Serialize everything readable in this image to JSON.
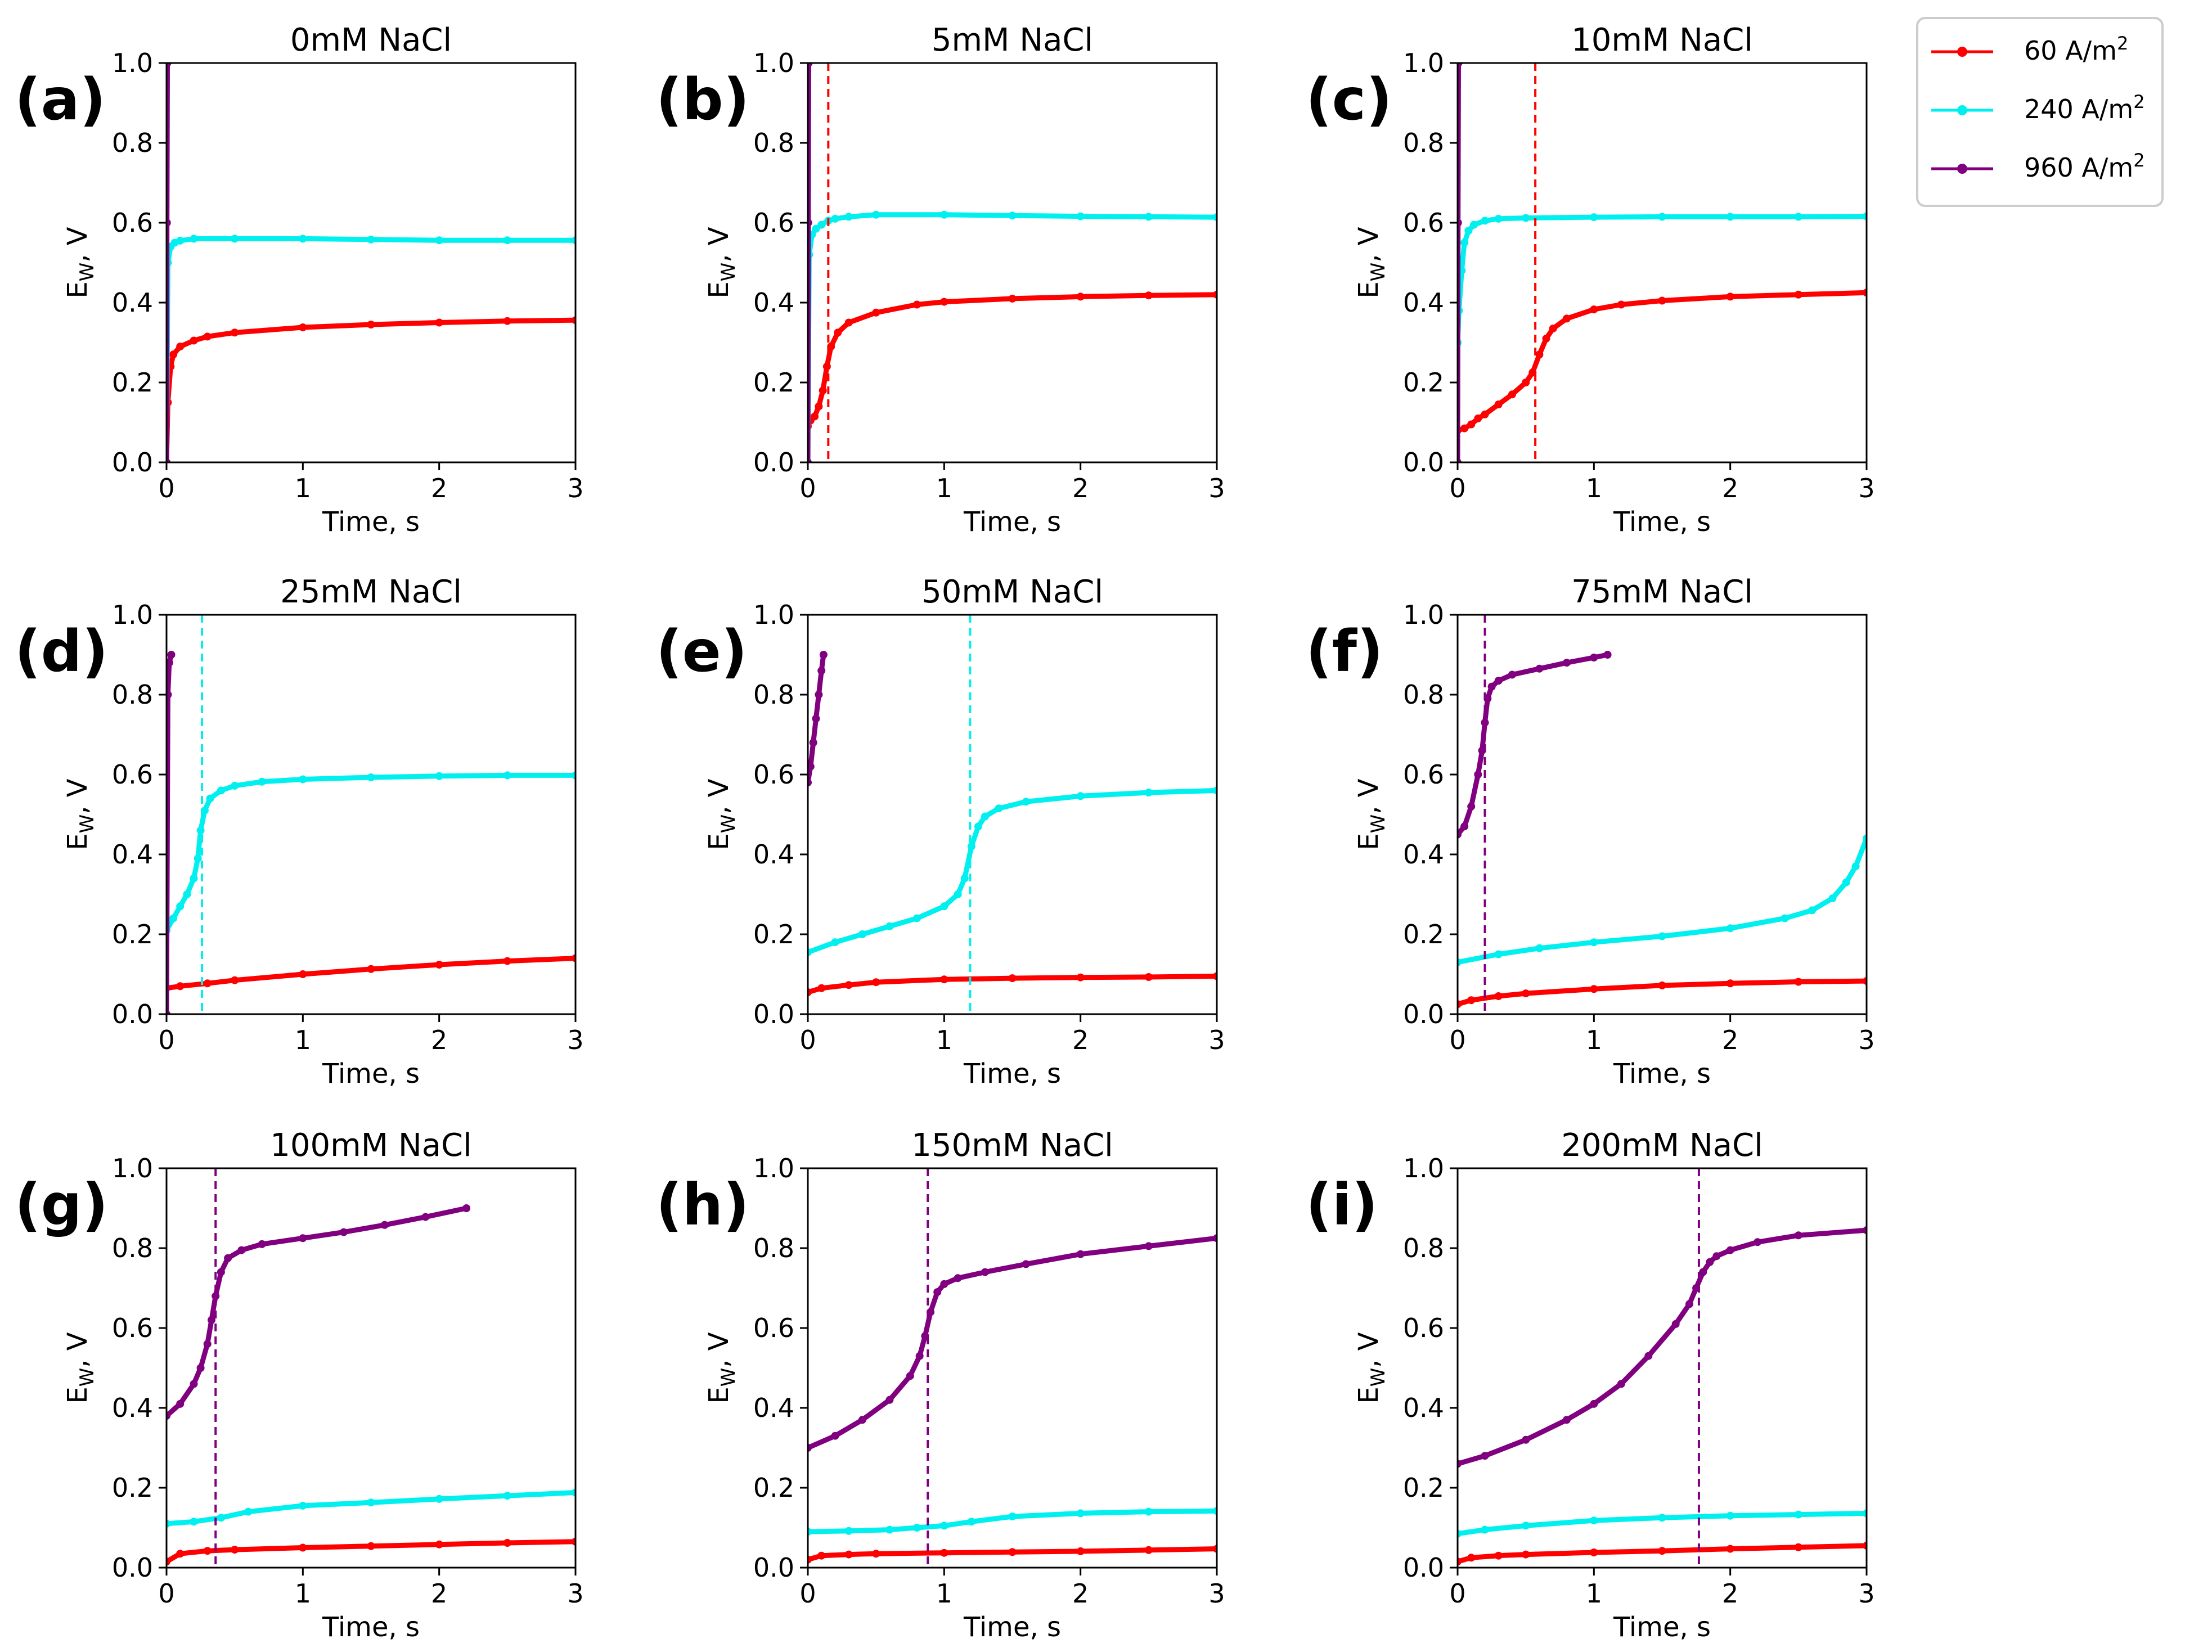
{
  "figure": {
    "legend": [
      {
        "label": "60 A/m",
        "sup": "2",
        "color": "#ff0000"
      },
      {
        "label": "240 A/m",
        "sup": "2",
        "color": "#00f0f0"
      },
      {
        "label": "960 A/m",
        "sup": "2",
        "color": "#800080"
      }
    ]
  },
  "chart_data": [
    {
      "type": "line",
      "panel": "(a)",
      "title": "0mM NaCl",
      "xlabel": "Time, s",
      "ylabel": "E",
      "ylabel_sub": "W",
      "ylabel_suffix": ", V",
      "xlim": [
        0,
        3
      ],
      "ylim": [
        0,
        1
      ],
      "xticks": [
        0,
        1,
        2,
        3
      ],
      "yticks": [
        0.0,
        0.2,
        0.4,
        0.6,
        0.8,
        1.0
      ],
      "vline": null,
      "series": [
        {
          "name": "60 A/m2",
          "color": "#ff0000",
          "x": [
            0,
            0.01,
            0.03,
            0.05,
            0.1,
            0.2,
            0.3,
            0.5,
            1,
            1.5,
            2,
            2.5,
            3
          ],
          "y": [
            0,
            0.15,
            0.24,
            0.27,
            0.29,
            0.305,
            0.315,
            0.325,
            0.338,
            0.345,
            0.35,
            0.354,
            0.356
          ]
        },
        {
          "name": "240 A/m2",
          "color": "#00f0f0",
          "x": [
            0,
            0.01,
            0.03,
            0.06,
            0.1,
            0.2,
            0.5,
            1,
            1.5,
            2,
            2.5,
            3
          ],
          "y": [
            0,
            0.5,
            0.54,
            0.55,
            0.555,
            0.56,
            0.56,
            0.56,
            0.558,
            0.556,
            0.556,
            0.556
          ]
        },
        {
          "name": "960 A/m2",
          "color": "#800080",
          "x": [
            0,
            0.003,
            0.006
          ],
          "y": [
            0,
            0.6,
            1.0
          ]
        }
      ]
    },
    {
      "type": "line",
      "panel": "(b)",
      "title": "5mM NaCl",
      "xlabel": "Time, s",
      "ylabel": "E",
      "ylabel_sub": "W",
      "ylabel_suffix": ", V",
      "xlim": [
        0,
        3
      ],
      "ylim": [
        0,
        1
      ],
      "xticks": [
        0,
        1,
        2,
        3
      ],
      "yticks": [
        0.0,
        0.2,
        0.4,
        0.6,
        0.8,
        1.0
      ],
      "vline": {
        "x": 0.15,
        "color": "#ff0000"
      },
      "series": [
        {
          "name": "60 A/m2",
          "color": "#ff0000",
          "x": [
            0,
            0.02,
            0.05,
            0.08,
            0.11,
            0.14,
            0.17,
            0.22,
            0.3,
            0.5,
            0.8,
            1,
            1.5,
            2,
            2.5,
            3
          ],
          "y": [
            0.09,
            0.105,
            0.115,
            0.14,
            0.18,
            0.24,
            0.29,
            0.325,
            0.35,
            0.375,
            0.395,
            0.402,
            0.41,
            0.415,
            0.418,
            0.42
          ]
        },
        {
          "name": "240 A/m2",
          "color": "#00f0f0",
          "x": [
            0,
            0.01,
            0.03,
            0.06,
            0.1,
            0.15,
            0.2,
            0.3,
            0.5,
            1,
            1.5,
            2,
            2.5,
            3
          ],
          "y": [
            0,
            0.52,
            0.57,
            0.585,
            0.595,
            0.605,
            0.61,
            0.615,
            0.62,
            0.62,
            0.618,
            0.616,
            0.615,
            0.614
          ]
        },
        {
          "name": "960 A/m2",
          "color": "#800080",
          "x": [
            0,
            0.003,
            0.006
          ],
          "y": [
            0,
            0.6,
            1.0
          ]
        }
      ]
    },
    {
      "type": "line",
      "panel": "(c)",
      "title": "10mM NaCl",
      "xlabel": "Time, s",
      "ylabel": "E",
      "ylabel_sub": "W",
      "ylabel_suffix": ", V",
      "xlim": [
        0,
        3
      ],
      "ylim": [
        0,
        1
      ],
      "xticks": [
        0,
        1,
        2,
        3
      ],
      "yticks": [
        0.0,
        0.2,
        0.4,
        0.6,
        0.8,
        1.0
      ],
      "vline": {
        "x": 0.57,
        "color": "#ff0000"
      },
      "series": [
        {
          "name": "60 A/m2",
          "color": "#ff0000",
          "x": [
            0,
            0.05,
            0.1,
            0.15,
            0.2,
            0.3,
            0.4,
            0.5,
            0.55,
            0.6,
            0.65,
            0.7,
            0.8,
            1,
            1.2,
            1.5,
            2,
            2.5,
            3
          ],
          "y": [
            0.08,
            0.085,
            0.095,
            0.11,
            0.12,
            0.145,
            0.17,
            0.2,
            0.225,
            0.27,
            0.31,
            0.335,
            0.36,
            0.383,
            0.395,
            0.405,
            0.415,
            0.42,
            0.425
          ]
        },
        {
          "name": "240 A/m2",
          "color": "#00f0f0",
          "x": [
            0,
            0.01,
            0.03,
            0.05,
            0.08,
            0.12,
            0.2,
            0.3,
            0.5,
            1,
            1.5,
            2,
            2.5,
            3
          ],
          "y": [
            0.3,
            0.38,
            0.48,
            0.55,
            0.58,
            0.595,
            0.605,
            0.61,
            0.612,
            0.614,
            0.615,
            0.615,
            0.615,
            0.616
          ]
        },
        {
          "name": "960 A/m2",
          "color": "#800080",
          "x": [
            0,
            0.003,
            0.006
          ],
          "y": [
            0,
            0.6,
            1.0
          ]
        }
      ]
    },
    {
      "type": "line",
      "panel": "(d)",
      "title": "25mM NaCl",
      "xlabel": "Time, s",
      "ylabel": "E",
      "ylabel_sub": "W",
      "ylabel_suffix": ", V",
      "xlim": [
        0,
        3
      ],
      "ylim": [
        0,
        1
      ],
      "xticks": [
        0,
        1,
        2,
        3
      ],
      "yticks": [
        0.0,
        0.2,
        0.4,
        0.6,
        0.8,
        1.0
      ],
      "vline": {
        "x": 0.26,
        "color": "#00f0f0"
      },
      "series": [
        {
          "name": "60 A/m2",
          "color": "#ff0000",
          "x": [
            0,
            0.1,
            0.3,
            0.5,
            1,
            1.5,
            2,
            2.5,
            3
          ],
          "y": [
            0.065,
            0.07,
            0.077,
            0.085,
            0.1,
            0.113,
            0.124,
            0.133,
            0.14
          ]
        },
        {
          "name": "240 A/m2",
          "color": "#00f0f0",
          "x": [
            0,
            0.05,
            0.1,
            0.15,
            0.2,
            0.23,
            0.25,
            0.28,
            0.32,
            0.4,
            0.5,
            0.7,
            1,
            1.5,
            2,
            2.5,
            3
          ],
          "y": [
            0.21,
            0.24,
            0.27,
            0.3,
            0.34,
            0.39,
            0.46,
            0.51,
            0.54,
            0.56,
            0.572,
            0.582,
            0.588,
            0.593,
            0.596,
            0.598,
            0.598
          ]
        },
        {
          "name": "960 A/m2",
          "color": "#800080",
          "x": [
            0,
            0.01,
            0.02,
            0.035
          ],
          "y": [
            0,
            0.8,
            0.88,
            0.9
          ]
        }
      ]
    },
    {
      "type": "line",
      "panel": "(e)",
      "title": "50mM NaCl",
      "xlabel": "Time, s",
      "ylabel": "E",
      "ylabel_sub": "W",
      "ylabel_suffix": ", V",
      "xlim": [
        0,
        3
      ],
      "ylim": [
        0,
        1
      ],
      "xticks": [
        0,
        1,
        2,
        3
      ],
      "yticks": [
        0.0,
        0.2,
        0.4,
        0.6,
        0.8,
        1.0
      ],
      "vline": {
        "x": 1.19,
        "color": "#00f0f0"
      },
      "series": [
        {
          "name": "60 A/m2",
          "color": "#ff0000",
          "x": [
            0,
            0.1,
            0.3,
            0.5,
            1,
            1.5,
            2,
            2.5,
            3
          ],
          "y": [
            0.055,
            0.065,
            0.073,
            0.08,
            0.087,
            0.09,
            0.092,
            0.093,
            0.095
          ]
        },
        {
          "name": "240 A/m2",
          "color": "#00f0f0",
          "x": [
            0,
            0.2,
            0.4,
            0.6,
            0.8,
            1.0,
            1.1,
            1.15,
            1.2,
            1.25,
            1.3,
            1.4,
            1.6,
            2.0,
            2.5,
            3
          ],
          "y": [
            0.155,
            0.18,
            0.2,
            0.22,
            0.24,
            0.27,
            0.3,
            0.34,
            0.42,
            0.47,
            0.495,
            0.515,
            0.532,
            0.546,
            0.555,
            0.56
          ]
        },
        {
          "name": "960 A/m2",
          "color": "#800080",
          "x": [
            0,
            0.02,
            0.04,
            0.06,
            0.08,
            0.1,
            0.115
          ],
          "y": [
            0.58,
            0.62,
            0.68,
            0.74,
            0.8,
            0.86,
            0.9
          ]
        }
      ]
    },
    {
      "type": "line",
      "panel": "(f)",
      "title": "75mM NaCl",
      "xlabel": "Time, s",
      "ylabel": "E",
      "ylabel_sub": "W",
      "ylabel_suffix": ", V",
      "xlim": [
        0,
        3
      ],
      "ylim": [
        0,
        1
      ],
      "xticks": [
        0,
        1,
        2,
        3
      ],
      "yticks": [
        0.0,
        0.2,
        0.4,
        0.6,
        0.8,
        1.0
      ],
      "vline": {
        "x": 0.2,
        "color": "#800080"
      },
      "series": [
        {
          "name": "60 A/m2",
          "color": "#ff0000",
          "x": [
            0,
            0.1,
            0.3,
            0.5,
            1,
            1.5,
            2,
            2.5,
            3
          ],
          "y": [
            0.025,
            0.035,
            0.045,
            0.052,
            0.063,
            0.072,
            0.077,
            0.081,
            0.083
          ]
        },
        {
          "name": "240 A/m2",
          "color": "#00f0f0",
          "x": [
            0,
            0.3,
            0.6,
            1.0,
            1.5,
            2.0,
            2.4,
            2.6,
            2.75,
            2.85,
            2.92,
            3
          ],
          "y": [
            0.13,
            0.15,
            0.165,
            0.18,
            0.195,
            0.215,
            0.24,
            0.26,
            0.29,
            0.33,
            0.37,
            0.44
          ]
        },
        {
          "name": "960 A/m2",
          "color": "#800080",
          "x": [
            0,
            0.05,
            0.1,
            0.15,
            0.18,
            0.2,
            0.22,
            0.25,
            0.3,
            0.4,
            0.6,
            0.8,
            1.0,
            1.1
          ],
          "y": [
            0.45,
            0.47,
            0.52,
            0.6,
            0.66,
            0.73,
            0.79,
            0.82,
            0.835,
            0.85,
            0.865,
            0.88,
            0.893,
            0.9
          ]
        }
      ]
    },
    {
      "type": "line",
      "panel": "(g)",
      "title": "100mM NaCl",
      "xlabel": "Time, s",
      "ylabel": "E",
      "ylabel_sub": "W",
      "ylabel_suffix": ", V",
      "xlim": [
        0,
        3
      ],
      "ylim": [
        0,
        1
      ],
      "xticks": [
        0,
        1,
        2,
        3
      ],
      "yticks": [
        0.0,
        0.2,
        0.4,
        0.6,
        0.8,
        1.0
      ],
      "vline": {
        "x": 0.36,
        "color": "#800080"
      },
      "series": [
        {
          "name": "60 A/m2",
          "color": "#ff0000",
          "x": [
            0,
            0.1,
            0.3,
            0.5,
            1,
            1.5,
            2,
            2.5,
            3
          ],
          "y": [
            0.015,
            0.035,
            0.042,
            0.045,
            0.05,
            0.054,
            0.058,
            0.062,
            0.065
          ]
        },
        {
          "name": "240 A/m2",
          "color": "#00f0f0",
          "x": [
            0,
            0.2,
            0.4,
            0.6,
            1,
            1.5,
            2,
            2.5,
            3
          ],
          "y": [
            0.11,
            0.115,
            0.125,
            0.14,
            0.155,
            0.163,
            0.172,
            0.18,
            0.188
          ]
        },
        {
          "name": "960 A/m2",
          "color": "#800080",
          "x": [
            0,
            0.1,
            0.2,
            0.25,
            0.3,
            0.33,
            0.36,
            0.4,
            0.45,
            0.55,
            0.7,
            1.0,
            1.3,
            1.6,
            1.9,
            2.2
          ],
          "y": [
            0.38,
            0.41,
            0.46,
            0.5,
            0.56,
            0.62,
            0.68,
            0.74,
            0.775,
            0.795,
            0.81,
            0.825,
            0.84,
            0.858,
            0.878,
            0.9
          ]
        }
      ]
    },
    {
      "type": "line",
      "panel": "(h)",
      "title": "150mM NaCl",
      "xlabel": "Time, s",
      "ylabel": "E",
      "ylabel_sub": "W",
      "ylabel_suffix": ", V",
      "xlim": [
        0,
        3
      ],
      "ylim": [
        0,
        1
      ],
      "xticks": [
        0,
        1,
        2,
        3
      ],
      "yticks": [
        0.0,
        0.2,
        0.4,
        0.6,
        0.8,
        1.0
      ],
      "vline": {
        "x": 0.88,
        "color": "#800080"
      },
      "series": [
        {
          "name": "60 A/m2",
          "color": "#ff0000",
          "x": [
            0,
            0.1,
            0.3,
            0.5,
            1,
            1.5,
            2,
            2.5,
            3
          ],
          "y": [
            0.02,
            0.03,
            0.033,
            0.035,
            0.037,
            0.039,
            0.041,
            0.044,
            0.047
          ]
        },
        {
          "name": "240 A/m2",
          "color": "#00f0f0",
          "x": [
            0,
            0.3,
            0.6,
            0.8,
            1.0,
            1.2,
            1.5,
            2,
            2.5,
            3
          ],
          "y": [
            0.09,
            0.092,
            0.095,
            0.1,
            0.105,
            0.115,
            0.128,
            0.136,
            0.14,
            0.142
          ]
        },
        {
          "name": "960 A/m2",
          "color": "#800080",
          "x": [
            0,
            0.2,
            0.4,
            0.6,
            0.75,
            0.82,
            0.86,
            0.9,
            0.95,
            1.0,
            1.1,
            1.3,
            1.6,
            2,
            2.5,
            3
          ],
          "y": [
            0.3,
            0.33,
            0.37,
            0.42,
            0.48,
            0.53,
            0.58,
            0.64,
            0.69,
            0.71,
            0.725,
            0.74,
            0.76,
            0.785,
            0.805,
            0.825
          ]
        }
      ]
    },
    {
      "type": "line",
      "panel": "(i)",
      "title": "200mM NaCl",
      "xlabel": "Time, s",
      "ylabel": "E",
      "ylabel_sub": "W",
      "ylabel_suffix": ", V",
      "xlim": [
        0,
        3
      ],
      "ylim": [
        0,
        1
      ],
      "xticks": [
        0,
        1,
        2,
        3
      ],
      "yticks": [
        0.0,
        0.2,
        0.4,
        0.6,
        0.8,
        1.0
      ],
      "vline": {
        "x": 1.77,
        "color": "#800080"
      },
      "series": [
        {
          "name": "60 A/m2",
          "color": "#ff0000",
          "x": [
            0,
            0.1,
            0.3,
            0.5,
            1,
            1.5,
            2,
            2.5,
            3
          ],
          "y": [
            0.015,
            0.025,
            0.03,
            0.033,
            0.038,
            0.042,
            0.047,
            0.051,
            0.055
          ]
        },
        {
          "name": "240 A/m2",
          "color": "#00f0f0",
          "x": [
            0,
            0.2,
            0.5,
            1,
            1.5,
            2,
            2.5,
            3
          ],
          "y": [
            0.085,
            0.095,
            0.105,
            0.118,
            0.125,
            0.13,
            0.133,
            0.136
          ]
        },
        {
          "name": "960 A/m2",
          "color": "#800080",
          "x": [
            0,
            0.2,
            0.5,
            0.8,
            1.0,
            1.2,
            1.4,
            1.6,
            1.7,
            1.75,
            1.8,
            1.85,
            1.9,
            2.0,
            2.2,
            2.5,
            3
          ],
          "y": [
            0.26,
            0.28,
            0.32,
            0.37,
            0.41,
            0.46,
            0.53,
            0.61,
            0.66,
            0.7,
            0.74,
            0.765,
            0.78,
            0.795,
            0.815,
            0.832,
            0.845
          ]
        }
      ]
    }
  ]
}
